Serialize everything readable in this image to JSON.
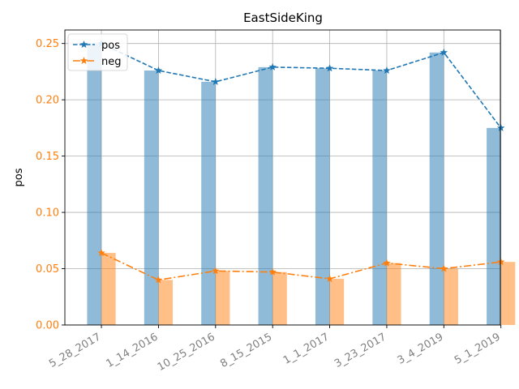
{
  "chart_data": {
    "type": "bar",
    "title": "EastSideKing",
    "xlabel": "",
    "ylabel": "pos",
    "categories": [
      "5_28_2017",
      "1_14_2016",
      "10_25_2016",
      "8_15_2015",
      "1_1_2017",
      "3_23_2017",
      "3_4_2019",
      "5_1_2019"
    ],
    "series": [
      {
        "name": "pos",
        "values": [
          0.25,
          0.226,
          0.216,
          0.229,
          0.228,
          0.226,
          0.242,
          0.175
        ],
        "color": "#1f77b4",
        "bar_color": "#8fb8d9",
        "line_style": "dashed"
      },
      {
        "name": "neg",
        "values": [
          0.064,
          0.04,
          0.048,
          0.047,
          0.041,
          0.055,
          0.05,
          0.056
        ],
        "color": "#ff7f0e",
        "bar_color": "#ffbf86",
        "line_style": "dashdot"
      }
    ],
    "ylim": [
      0,
      0.262
    ],
    "yticks": [
      "0.00",
      "0.05",
      "0.10",
      "0.15",
      "0.20",
      "0.25"
    ],
    "ytick_values": [
      0,
      0.05,
      0.1,
      0.15,
      0.2,
      0.25
    ],
    "ytick_color": "#ff7f0e",
    "xtick_color": "#808080",
    "grid": true,
    "legend_position": "top-left",
    "marker": "star"
  }
}
